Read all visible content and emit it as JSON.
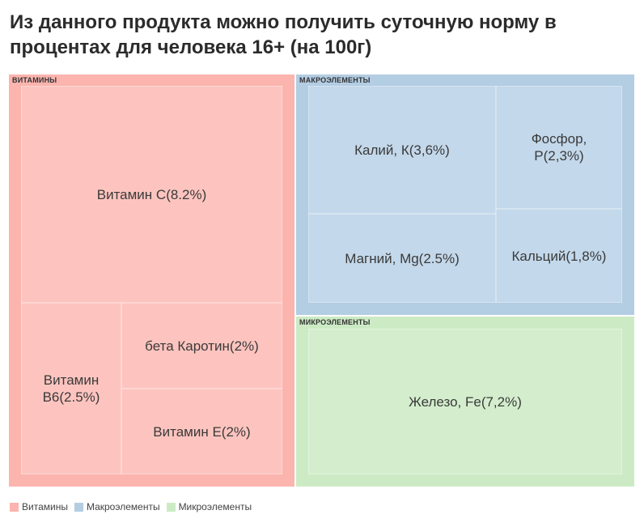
{
  "header": {
    "title": "Из данного продукта можно получить суточную норму в процентах для человека 16+ (на 100г)"
  },
  "chart_data": {
    "type": "treemap",
    "groups": [
      {
        "name": "ВИТАМИНЫ",
        "legend_label": "Витамины",
        "color": "#fbb4ae",
        "tile_color": "#fdc4bf",
        "items": [
          {
            "label": "Витамин С(8.2%)",
            "value": 8.2
          },
          {
            "label": "Витамин В6(2.5%)",
            "value": 2.5
          },
          {
            "label": "бета Каротин(2%)",
            "value": 2
          },
          {
            "label": "Витамин Е(2%)",
            "value": 2
          }
        ]
      },
      {
        "name": "МАКРОЭЛЕМЕНТЫ",
        "legend_label": "Макроэлементы",
        "color": "#b3cde3",
        "tile_color": "#c3d8ea",
        "items": [
          {
            "label": "Калий, К(3,6%)",
            "value": 3.6
          },
          {
            "label": "Фосфор, Р(2,3%)",
            "value": 2.3
          },
          {
            "label": "Магний, Mg(2.5%)",
            "value": 2.5
          },
          {
            "label": "Кальций(1,8%)",
            "value": 1.8
          }
        ]
      },
      {
        "name": "МИКРОЭЛЕМЕНТЫ",
        "legend_label": "Микроэлементы",
        "color": "#ccebc5",
        "tile_color": "#d4eecd",
        "items": [
          {
            "label": "Железо, Fe(7,2%)",
            "value": 7.2
          }
        ]
      }
    ]
  }
}
